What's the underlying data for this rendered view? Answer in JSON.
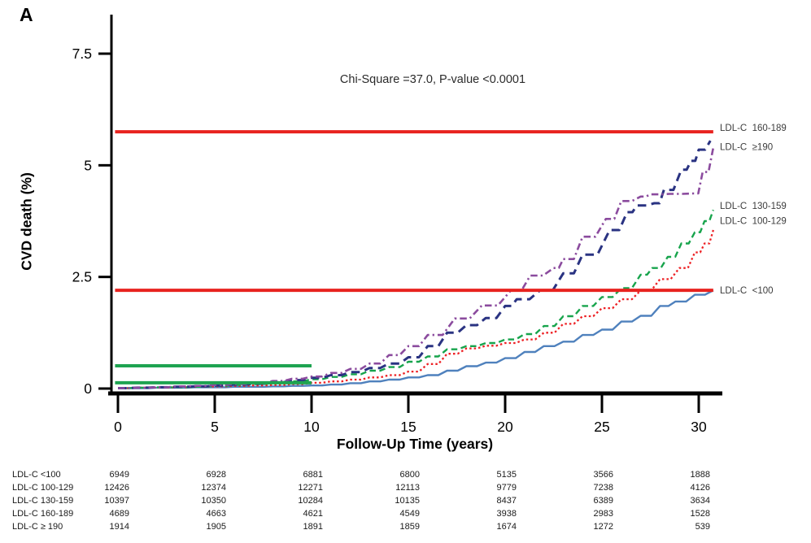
{
  "panel_label": "A",
  "annotation": "Chi-Square =37.0, P-value <0.0001",
  "chart_data": {
    "type": "line",
    "title": "",
    "xlabel": "Follow-Up Time (years)",
    "ylabel": "CVD death (%)",
    "xlim": [
      0,
      31.2
    ],
    "ylim": [
      0,
      7.9
    ],
    "grid": false,
    "legend_position": "right-of-curves",
    "xticks": [
      0,
      5,
      10,
      15,
      20,
      25,
      30
    ],
    "xtick_labels": [
      "0",
      "5",
      "10",
      "15",
      "20",
      "25",
      "30"
    ],
    "yticks": [
      0,
      2.5,
      5,
      7.5
    ],
    "ytick_labels": [
      "0",
      "2.5",
      "5",
      "7.5"
    ],
    "series": [
      {
        "name": "LDL-C <100",
        "style": "solid",
        "color": "#4f81bd",
        "x": [
          0,
          1,
          2,
          3,
          4,
          5,
          6,
          7,
          8,
          9,
          10,
          11,
          12,
          13,
          14,
          15,
          16,
          17,
          18,
          19,
          20,
          21,
          22,
          23,
          24,
          25,
          26,
          27,
          28,
          28.8,
          29.8,
          30.75
        ],
        "y": [
          0.01,
          0.01,
          0.02,
          0.02,
          0.03,
          0.03,
          0.04,
          0.04,
          0.05,
          0.06,
          0.07,
          0.09,
          0.12,
          0.16,
          0.2,
          0.25,
          0.3,
          0.4,
          0.5,
          0.58,
          0.68,
          0.82,
          0.95,
          1.05,
          1.2,
          1.32,
          1.5,
          1.63,
          1.85,
          1.95,
          2.1,
          2.2
        ]
      },
      {
        "name": "LDL-C 100-129",
        "style": "dotted",
        "color": "#ed2024",
        "x": [
          0,
          1,
          2,
          3,
          4,
          5,
          6,
          7,
          8,
          9,
          10,
          11,
          12,
          13,
          14,
          15,
          16,
          17,
          18,
          19,
          20,
          21,
          22,
          23,
          24,
          25,
          26,
          27,
          28,
          29,
          29.8,
          30.3,
          30.75
        ],
        "y": [
          0.01,
          0.02,
          0.02,
          0.03,
          0.04,
          0.05,
          0.06,
          0.07,
          0.08,
          0.1,
          0.13,
          0.16,
          0.2,
          0.25,
          0.3,
          0.38,
          0.55,
          0.78,
          0.9,
          0.96,
          1.02,
          1.1,
          1.25,
          1.45,
          1.62,
          1.8,
          2.0,
          2.2,
          2.45,
          2.7,
          3.05,
          3.25,
          3.55
        ]
      },
      {
        "name": "LDL-C 130-159",
        "style": "dashed",
        "color": "#17a44c",
        "x": [
          0,
          1,
          2,
          3,
          4,
          5,
          6,
          7,
          8,
          9,
          10,
          11,
          12,
          13,
          14,
          15,
          16,
          17,
          18,
          19,
          20,
          21,
          22,
          23,
          24,
          25,
          26,
          27,
          27.6,
          28.4,
          29.1,
          29.8,
          30.3,
          30.75
        ],
        "y": [
          0.01,
          0.02,
          0.03,
          0.03,
          0.04,
          0.06,
          0.08,
          0.1,
          0.12,
          0.16,
          0.21,
          0.26,
          0.32,
          0.4,
          0.48,
          0.6,
          0.72,
          0.88,
          0.95,
          1.02,
          1.1,
          1.22,
          1.4,
          1.62,
          1.85,
          2.05,
          2.25,
          2.55,
          2.7,
          2.95,
          3.25,
          3.5,
          3.75,
          4.0
        ]
      },
      {
        "name": "LDL-C 160-189",
        "style": "longdash",
        "color": "#2a3382",
        "x": [
          0,
          1,
          2,
          3,
          4,
          5,
          6,
          7,
          8,
          9,
          10,
          11,
          12,
          13,
          14,
          15,
          16,
          17,
          18,
          19,
          20,
          20.6,
          21.8,
          23,
          24,
          25.4,
          26.3,
          26.8,
          27.7,
          28.2,
          29.1,
          29.6,
          30,
          30.6
        ],
        "y": [
          0.01,
          0.02,
          0.03,
          0.04,
          0.05,
          0.07,
          0.09,
          0.11,
          0.14,
          0.19,
          0.24,
          0.3,
          0.37,
          0.46,
          0.56,
          0.7,
          0.95,
          1.25,
          1.42,
          1.58,
          1.85,
          2.0,
          2.2,
          2.58,
          3.0,
          3.55,
          3.95,
          4.1,
          4.15,
          4.45,
          4.9,
          5.1,
          5.35,
          5.55
        ]
      },
      {
        "name": "LDL-C ≥190",
        "style": "dashdot",
        "color": "#8b4b9e",
        "x": [
          0,
          1,
          2,
          3,
          4,
          5,
          6,
          7,
          8,
          9,
          10,
          11,
          12,
          13,
          14,
          15,
          16,
          17.4,
          18.8,
          20.3,
          21.3,
          22.5,
          23,
          24,
          25.2,
          26,
          27,
          27.5,
          28.5,
          29.7,
          30.2,
          30.75
        ],
        "y": [
          0.01,
          0.02,
          0.03,
          0.05,
          0.06,
          0.08,
          0.1,
          0.13,
          0.17,
          0.22,
          0.27,
          0.35,
          0.44,
          0.56,
          0.75,
          0.95,
          1.2,
          1.57,
          1.86,
          2.2,
          2.53,
          2.7,
          2.9,
          3.4,
          3.8,
          4.2,
          4.3,
          4.35,
          4.36,
          4.37,
          4.85,
          5.4
        ]
      }
    ],
    "reference_lines": [
      {
        "name": "upper-red-reference",
        "color": "#e8231f",
        "y": 5.75,
        "x0": -0.15,
        "x1": 30.75
      },
      {
        "name": "lower-red-reference",
        "color": "#e8231f",
        "y": 2.2,
        "x0": -0.15,
        "x1": 30.75
      },
      {
        "name": "upper-green-reference",
        "color": "#1ea351",
        "y": 0.51,
        "x0": -0.15,
        "x1": 10.0
      },
      {
        "name": "lower-green-reference",
        "color": "#1ea351",
        "y": 0.13,
        "x0": -0.15,
        "x1": 10.0
      }
    ],
    "curve_labels": [
      {
        "text": "LDL-C  160-189",
        "y": 5.84
      },
      {
        "text": "LDL-C  ≥190",
        "y": 5.42
      },
      {
        "text": "LDL-C  130-159",
        "y": 4.1
      },
      {
        "text": "LDL-C  100-129",
        "y": 3.76
      },
      {
        "text": "LDL-C  <100",
        "y": 2.2
      }
    ]
  },
  "risk_table": {
    "rows": [
      {
        "label": "LDL-C <100",
        "values": [
          "6949",
          "6928",
          "6881",
          "6800",
          "5135",
          "3566",
          "1888"
        ]
      },
      {
        "label": "LDL-C 100-129",
        "values": [
          "12426",
          "12374",
          "12271",
          "12113",
          "9779",
          "7238",
          "4126"
        ]
      },
      {
        "label": "LDL-C 130-159",
        "values": [
          "10397",
          "10350",
          "10284",
          "10135",
          "8437",
          "6389",
          "3634"
        ]
      },
      {
        "label": "LDL-C 160-189",
        "values": [
          "4689",
          "4663",
          "4621",
          "4549",
          "3938",
          "2983",
          "1528"
        ]
      },
      {
        "label": "LDL-C ≥ 190",
        "values": [
          "1914",
          "1905",
          "1891",
          "1859",
          "1674",
          "1272",
          "539"
        ]
      }
    ]
  }
}
